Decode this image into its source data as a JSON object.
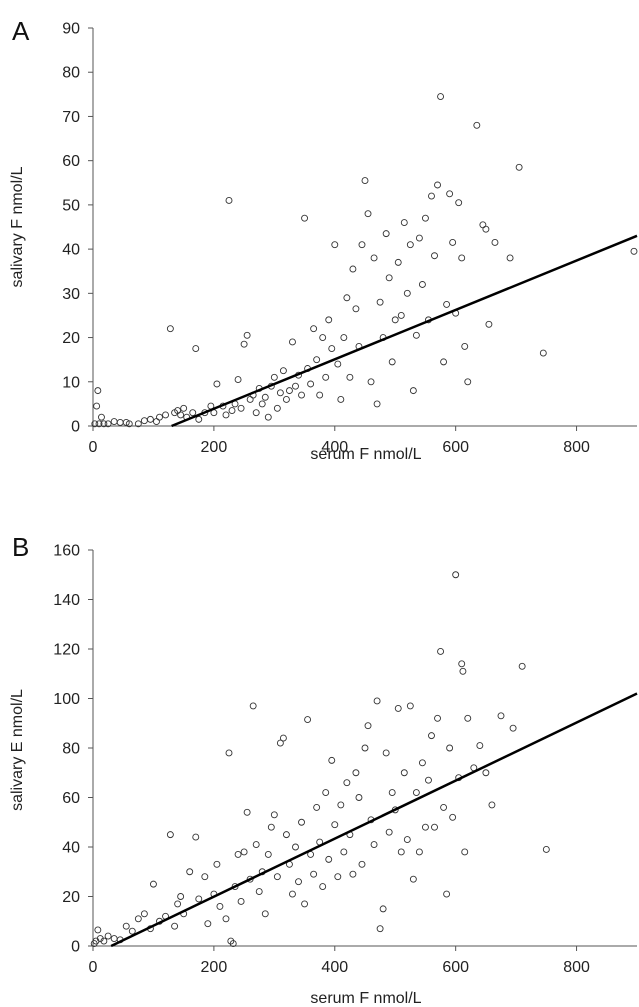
{
  "chart_data": [
    {
      "type": "scatter",
      "panel_label": "A",
      "title": "",
      "xlabel": "serum F nmol/L",
      "ylabel": "salivary F nmol/L",
      "xlim": [
        0,
        900
      ],
      "ylim": [
        0,
        90
      ],
      "xticks": [
        0,
        200,
        400,
        600,
        800
      ],
      "yticks": [
        0,
        10,
        20,
        30,
        40,
        50,
        60,
        70,
        80,
        90
      ],
      "grid": false,
      "legend": "none",
      "marker": "open-circle",
      "trendline": {
        "x": [
          130,
          900
        ],
        "y": [
          0,
          43
        ]
      },
      "series": [
        {
          "points": [
            [
              3,
              0.5
            ],
            [
              6,
              4.5
            ],
            [
              8,
              8
            ],
            [
              10,
              0.5
            ],
            [
              14,
              2
            ],
            [
              18,
              0.5
            ],
            [
              25,
              0.5
            ],
            [
              35,
              1
            ],
            [
              45,
              0.8
            ],
            [
              55,
              0.8
            ],
            [
              60,
              0.5
            ],
            [
              75,
              0.5
            ],
            [
              85,
              1.2
            ],
            [
              95,
              1.5
            ],
            [
              105,
              1
            ],
            [
              110,
              2
            ],
            [
              120,
              2.5
            ],
            [
              128,
              22
            ],
            [
              135,
              3
            ],
            [
              140,
              3.5
            ],
            [
              145,
              2.5
            ],
            [
              150,
              4
            ],
            [
              155,
              2
            ],
            [
              165,
              3
            ],
            [
              170,
              17.5
            ],
            [
              175,
              1.5
            ],
            [
              185,
              3
            ],
            [
              195,
              4.5
            ],
            [
              200,
              3
            ],
            [
              205,
              9.5
            ],
            [
              215,
              4.5
            ],
            [
              220,
              2.5
            ],
            [
              225,
              51
            ],
            [
              230,
              3.5
            ],
            [
              235,
              5
            ],
            [
              240,
              10.5
            ],
            [
              245,
              4
            ],
            [
              250,
              18.5
            ],
            [
              255,
              20.5
            ],
            [
              260,
              6
            ],
            [
              265,
              7
            ],
            [
              270,
              3
            ],
            [
              275,
              8.5
            ],
            [
              280,
              5
            ],
            [
              285,
              6.5
            ],
            [
              290,
              2
            ],
            [
              295,
              9
            ],
            [
              300,
              11
            ],
            [
              305,
              4
            ],
            [
              310,
              7.5
            ],
            [
              315,
              12.5
            ],
            [
              320,
              6
            ],
            [
              325,
              8
            ],
            [
              330,
              19
            ],
            [
              335,
              9
            ],
            [
              340,
              11.5
            ],
            [
              345,
              7
            ],
            [
              350,
              47
            ],
            [
              355,
              13
            ],
            [
              360,
              9.5
            ],
            [
              365,
              22
            ],
            [
              370,
              15
            ],
            [
              375,
              7
            ],
            [
              380,
              20
            ],
            [
              385,
              11
            ],
            [
              390,
              24
            ],
            [
              395,
              17.5
            ],
            [
              400,
              41
            ],
            [
              405,
              14
            ],
            [
              410,
              6
            ],
            [
              415,
              20
            ],
            [
              420,
              29
            ],
            [
              425,
              11
            ],
            [
              430,
              35.5
            ],
            [
              435,
              26.5
            ],
            [
              440,
              18
            ],
            [
              445,
              41
            ],
            [
              450,
              55.5
            ],
            [
              455,
              48
            ],
            [
              460,
              10
            ],
            [
              465,
              38
            ],
            [
              470,
              5
            ],
            [
              475,
              28
            ],
            [
              480,
              20
            ],
            [
              485,
              43.5
            ],
            [
              490,
              33.5
            ],
            [
              495,
              14.5
            ],
            [
              500,
              24
            ],
            [
              505,
              37
            ],
            [
              510,
              25
            ],
            [
              515,
              46
            ],
            [
              520,
              30
            ],
            [
              525,
              41
            ],
            [
              530,
              8
            ],
            [
              535,
              20.5
            ],
            [
              540,
              42.5
            ],
            [
              545,
              32
            ],
            [
              550,
              47
            ],
            [
              555,
              24
            ],
            [
              560,
              52
            ],
            [
              565,
              38.5
            ],
            [
              570,
              54.5
            ],
            [
              575,
              74.5
            ],
            [
              580,
              14.5
            ],
            [
              585,
              27.5
            ],
            [
              590,
              52.5
            ],
            [
              595,
              41.5
            ],
            [
              600,
              25.5
            ],
            [
              605,
              50.5
            ],
            [
              610,
              38
            ],
            [
              615,
              18
            ],
            [
              620,
              10
            ],
            [
              635,
              68
            ],
            [
              645,
              45.5
            ],
            [
              650,
              44.5
            ],
            [
              655,
              23
            ],
            [
              665,
              41.5
            ],
            [
              690,
              38
            ],
            [
              705,
              58.5
            ],
            [
              745,
              16.5
            ],
            [
              895,
              39.5
            ]
          ]
        }
      ]
    },
    {
      "type": "scatter",
      "panel_label": "B",
      "title": "",
      "xlabel": "serum F nmol/L",
      "ylabel": "salivary E nmol/L",
      "xlim": [
        0,
        900
      ],
      "ylim": [
        0,
        160
      ],
      "xticks": [
        0,
        200,
        400,
        600,
        800
      ],
      "yticks": [
        0,
        20,
        40,
        60,
        80,
        100,
        120,
        140,
        160
      ],
      "grid": false,
      "legend": "none",
      "marker": "open-circle",
      "trendline": {
        "x": [
          30,
          900
        ],
        "y": [
          0,
          102
        ]
      },
      "series": [
        {
          "points": [
            [
              2,
              1
            ],
            [
              5,
              2
            ],
            [
              8,
              6.5
            ],
            [
              12,
              3
            ],
            [
              18,
              2
            ],
            [
              25,
              4
            ],
            [
              35,
              3
            ],
            [
              45,
              2.5
            ],
            [
              55,
              8
            ],
            [
              65,
              6
            ],
            [
              75,
              11
            ],
            [
              85,
              13
            ],
            [
              95,
              7
            ],
            [
              100,
              25
            ],
            [
              110,
              10
            ],
            [
              120,
              12
            ],
            [
              128,
              45
            ],
            [
              135,
              8
            ],
            [
              140,
              17
            ],
            [
              145,
              20
            ],
            [
              150,
              13
            ],
            [
              160,
              30
            ],
            [
              170,
              44
            ],
            [
              175,
              19
            ],
            [
              185,
              28
            ],
            [
              190,
              9
            ],
            [
              200,
              21
            ],
            [
              205,
              33
            ],
            [
              210,
              16
            ],
            [
              220,
              11
            ],
            [
              225,
              78
            ],
            [
              228,
              2
            ],
            [
              232,
              1
            ],
            [
              235,
              24
            ],
            [
              240,
              37
            ],
            [
              245,
              18
            ],
            [
              250,
              38
            ],
            [
              255,
              54
            ],
            [
              260,
              27
            ],
            [
              265,
              97
            ],
            [
              270,
              41
            ],
            [
              275,
              22
            ],
            [
              280,
              30
            ],
            [
              285,
              13
            ],
            [
              290,
              37
            ],
            [
              295,
              48
            ],
            [
              300,
              53
            ],
            [
              305,
              28
            ],
            [
              310,
              82
            ],
            [
              315,
              84
            ],
            [
              320,
              45
            ],
            [
              325,
              33
            ],
            [
              330,
              21
            ],
            [
              335,
              40
            ],
            [
              340,
              26
            ],
            [
              345,
              50
            ],
            [
              350,
              17
            ],
            [
              355,
              91.5
            ],
            [
              360,
              37
            ],
            [
              365,
              29
            ],
            [
              370,
              56
            ],
            [
              375,
              42
            ],
            [
              380,
              24
            ],
            [
              385,
              62
            ],
            [
              390,
              35
            ],
            [
              395,
              75
            ],
            [
              400,
              49
            ],
            [
              405,
              28
            ],
            [
              410,
              57
            ],
            [
              415,
              38
            ],
            [
              420,
              66
            ],
            [
              425,
              45
            ],
            [
              430,
              29
            ],
            [
              435,
              70
            ],
            [
              440,
              60
            ],
            [
              445,
              33
            ],
            [
              450,
              80
            ],
            [
              455,
              89
            ],
            [
              460,
              51
            ],
            [
              465,
              41
            ],
            [
              470,
              99
            ],
            [
              475,
              7
            ],
            [
              480,
              15
            ],
            [
              485,
              78
            ],
            [
              490,
              46
            ],
            [
              495,
              62
            ],
            [
              500,
              55
            ],
            [
              505,
              96
            ],
            [
              510,
              38
            ],
            [
              515,
              70
            ],
            [
              520,
              43
            ],
            [
              525,
              97
            ],
            [
              530,
              27
            ],
            [
              535,
              62
            ],
            [
              540,
              38
            ],
            [
              545,
              74
            ],
            [
              550,
              48
            ],
            [
              555,
              67
            ],
            [
              560,
              85
            ],
            [
              565,
              48
            ],
            [
              570,
              92
            ],
            [
              575,
              119
            ],
            [
              580,
              56
            ],
            [
              585,
              21
            ],
            [
              590,
              80
            ],
            [
              595,
              52
            ],
            [
              600,
              150
            ],
            [
              605,
              68
            ],
            [
              610,
              114
            ],
            [
              612,
              111
            ],
            [
              615,
              38
            ],
            [
              620,
              92
            ],
            [
              630,
              72
            ],
            [
              640,
              81
            ],
            [
              650,
              70
            ],
            [
              660,
              57
            ],
            [
              675,
              93
            ],
            [
              695,
              88
            ],
            [
              710,
              113
            ],
            [
              750,
              39
            ]
          ]
        }
      ]
    }
  ]
}
